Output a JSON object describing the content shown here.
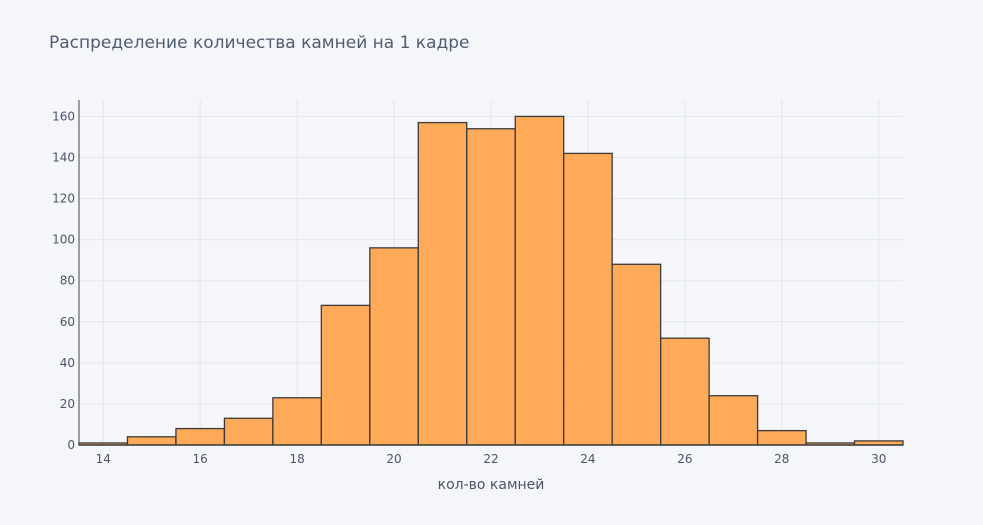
{
  "chart_data": {
    "type": "bar",
    "title": "Распределение количества камней на 1 кадре",
    "xlabel": "кол-во камней",
    "ylabel": "",
    "bin_width": 1,
    "bin_centers": [
      14,
      15,
      16,
      17,
      18,
      19,
      20,
      21,
      22,
      23,
      24,
      25,
      26,
      27,
      28,
      29,
      30
    ],
    "values": [
      1,
      4,
      8,
      13,
      23,
      68,
      96,
      157,
      154,
      160,
      142,
      88,
      52,
      24,
      7,
      1,
      2
    ],
    "xlim": [
      13.5,
      30.5
    ],
    "ylim": [
      0,
      168
    ],
    "x_ticks": [
      14,
      16,
      18,
      20,
      22,
      24,
      26,
      28,
      30
    ],
    "y_ticks": [
      0,
      20,
      40,
      60,
      80,
      100,
      120,
      140,
      160
    ],
    "grid": true,
    "colors": {
      "bar_fill": "#ffa54f",
      "bar_stroke": "#3a3a3a",
      "grid": "#e2e5ec",
      "background": "#f5f6fa"
    }
  }
}
